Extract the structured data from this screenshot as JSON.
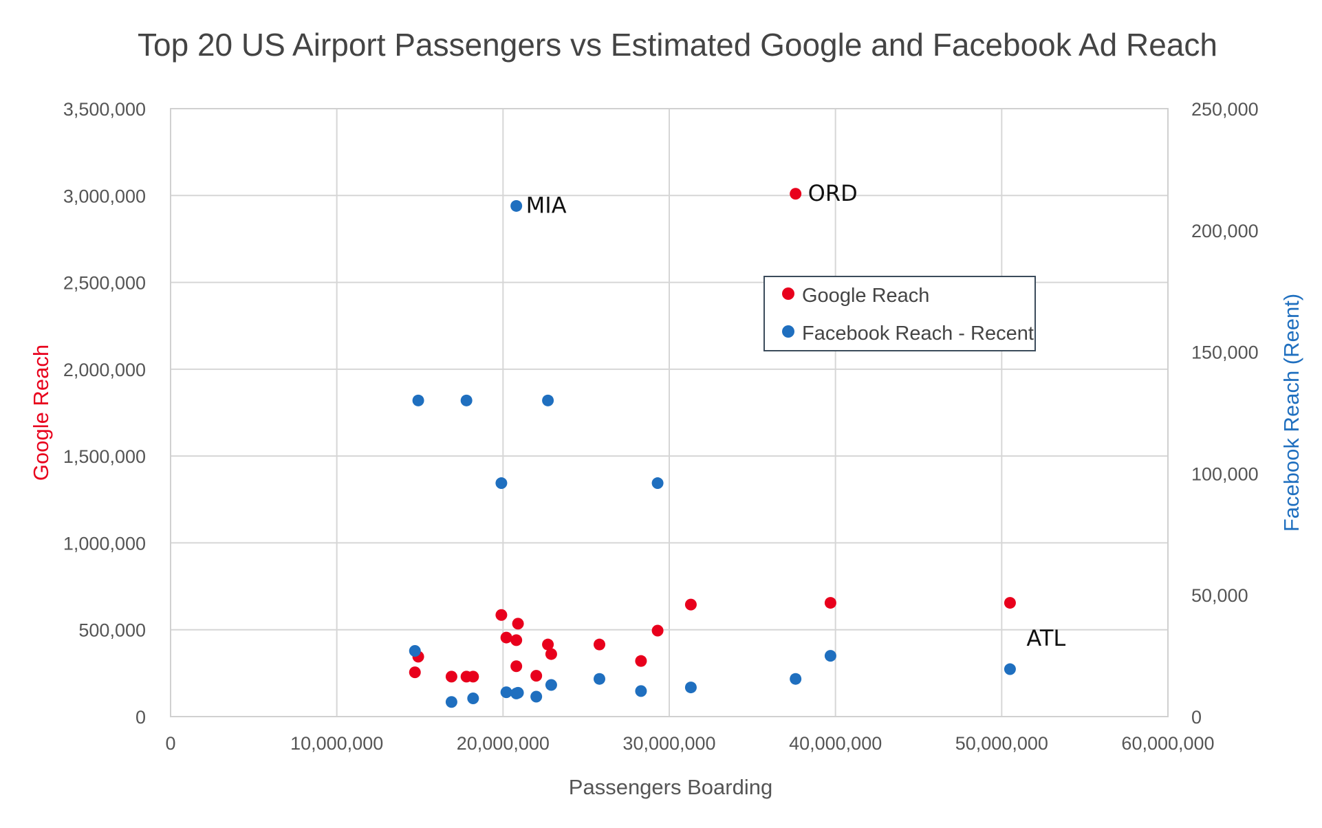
{
  "chart_data": {
    "type": "scatter",
    "title": "Top 20 US Airport Passengers vs Estimated Google and Facebook Ad Reach",
    "xlabel": "Passengers Boarding",
    "ylabel_left": "Google Reach",
    "ylabel_right": "Facebook Reach (Reent)",
    "xlim": [
      0,
      60000000
    ],
    "ylim_left": [
      0,
      3500000
    ],
    "ylim_right": [
      0,
      250000
    ],
    "x_ticks": [
      "0",
      "10,000,000",
      "20,000,000",
      "30,000,000",
      "40,000,000",
      "50,000,000",
      "60,000,000"
    ],
    "y_left_ticks": [
      "0",
      "500,000",
      "1,000,000",
      "1,500,000",
      "2,000,000",
      "2,500,000",
      "3,000,000",
      "3,500,000"
    ],
    "y_right_ticks": [
      "0",
      "50,000",
      "100,000",
      "150,000",
      "200,000",
      "250,000"
    ],
    "grid": true,
    "legend_position": "top-right",
    "series": [
      {
        "name": "Google Reach",
        "axis": "left",
        "color": "#e8001c",
        "points": [
          [
            14700000,
            255000
          ],
          [
            14900000,
            345000
          ],
          [
            16900000,
            230000
          ],
          [
            17800000,
            230000
          ],
          [
            18200000,
            230000
          ],
          [
            19900000,
            585000
          ],
          [
            20200000,
            455000
          ],
          [
            20800000,
            440000
          ],
          [
            20800000,
            290000
          ],
          [
            20900000,
            535000
          ],
          [
            22000000,
            235000
          ],
          [
            22700000,
            415000
          ],
          [
            22900000,
            360000
          ],
          [
            25800000,
            415000
          ],
          [
            28300000,
            320000
          ],
          [
            29300000,
            495000
          ],
          [
            31300000,
            645000
          ],
          [
            37600000,
            3010000
          ],
          [
            39700000,
            655000
          ],
          [
            50500000,
            655000
          ]
        ]
      },
      {
        "name": "Facebook Reach - Recent",
        "axis": "right",
        "color": "#1f6fbf",
        "points": [
          [
            14700000,
            27000
          ],
          [
            14900000,
            130000
          ],
          [
            16900000,
            6000
          ],
          [
            17800000,
            130000
          ],
          [
            18200000,
            7500
          ],
          [
            19900000,
            96000
          ],
          [
            20200000,
            10000
          ],
          [
            20800000,
            9500
          ],
          [
            20800000,
            210000
          ],
          [
            20900000,
            9800
          ],
          [
            22000000,
            8200
          ],
          [
            22700000,
            130000
          ],
          [
            22900000,
            13000
          ],
          [
            25800000,
            15500
          ],
          [
            28300000,
            10500
          ],
          [
            29300000,
            96000
          ],
          [
            31300000,
            12000
          ],
          [
            37600000,
            15500
          ],
          [
            39700000,
            25000
          ],
          [
            50500000,
            19500
          ]
        ]
      }
    ],
    "annotations": [
      {
        "text": "MIA",
        "x": 20800000,
        "y": 210000,
        "axis": "right",
        "dx": 14,
        "dy": 10
      },
      {
        "text": "ORD",
        "x": 37600000,
        "y": 3010000,
        "axis": "left",
        "dx": 18,
        "dy": 10
      },
      {
        "text": "ATL",
        "x": 50500000,
        "y": 32000,
        "axis": "right",
        "dx": 24,
        "dy": 10
      }
    ]
  }
}
